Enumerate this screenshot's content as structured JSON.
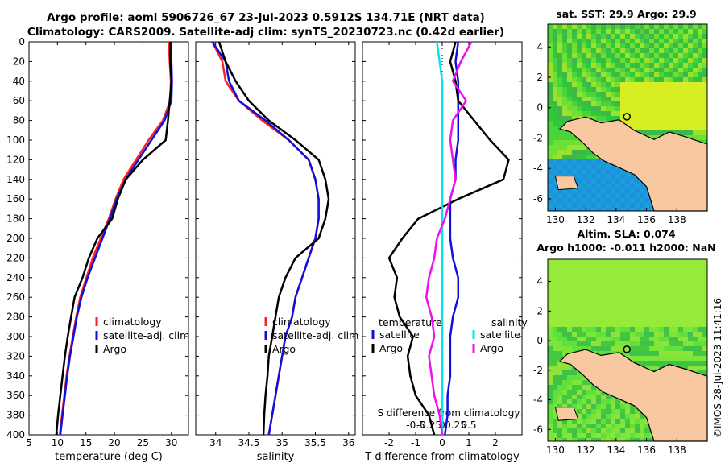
{
  "header": {
    "title_line1": "Argo profile: aoml 5906726_67 23-Jul-2023 0.5912S 134.71E (NRT data)",
    "title_line2": "Climatology: CARS2009. Satellite-adj clim: synTS_20230723.nc (0.42d earlier)"
  },
  "map_sst": {
    "title": "sat. SST: 29.9 Argo: 29.9"
  },
  "map_sla": {
    "title_line1": "Altim. SLA: 0.074",
    "title_line2": "Argo h1000: -0.011 h2000: NaN"
  },
  "copyright": "©IMOS 28-Jul-2023 11:41:16",
  "colors": {
    "climatology": "#ff2020",
    "satellite": "#1010dd",
    "argo": "#000000",
    "sat_salinity": "#00e5ee",
    "argo_salinity": "#ee10ee",
    "land": "#f8c8a0"
  },
  "chart_data": [
    {
      "type": "line",
      "name": "temperature",
      "xlabel": "temperature (deg C)",
      "xlim": [
        5,
        33
      ],
      "ylim": [
        400,
        0
      ],
      "xticks": [
        5,
        10,
        15,
        20,
        25,
        30
      ],
      "yticks": [
        0,
        20,
        40,
        60,
        80,
        100,
        120,
        140,
        160,
        180,
        200,
        220,
        240,
        260,
        280,
        300,
        320,
        340,
        360,
        380,
        400
      ],
      "legend": [
        "climatology",
        "satellite-adj. clim",
        "Argo"
      ],
      "series": [
        {
          "name": "climatology",
          "depth": [
            0,
            20,
            40,
            60,
            80,
            100,
            120,
            140,
            160,
            180,
            200,
            220,
            240,
            260,
            280,
            300,
            320,
            340,
            360,
            380,
            400
          ],
          "values": [
            29.5,
            29.7,
            29.9,
            29.8,
            28.5,
            26.0,
            23.8,
            21.6,
            20.2,
            19.0,
            17.6,
            16.2,
            15.1,
            14.0,
            13.3,
            12.7,
            12.1,
            11.6,
            11.2,
            10.8,
            10.4
          ]
        },
        {
          "name": "satellite-adj. clim",
          "depth": [
            0,
            20,
            40,
            60,
            80,
            100,
            120,
            140,
            160,
            180,
            200,
            220,
            240,
            260,
            280,
            300,
            320,
            340,
            360,
            380,
            400
          ],
          "values": [
            29.9,
            30.0,
            30.1,
            30.0,
            28.8,
            26.5,
            24.2,
            22.0,
            20.4,
            19.2,
            17.9,
            16.6,
            15.3,
            14.2,
            13.4,
            12.8,
            12.2,
            11.7,
            11.3,
            10.9,
            10.5
          ]
        },
        {
          "name": "Argo",
          "depth": [
            0,
            20,
            40,
            60,
            80,
            100,
            120,
            140,
            160,
            180,
            200,
            220,
            240,
            260,
            280,
            300,
            320,
            340,
            360,
            380,
            400
          ],
          "values": [
            29.8,
            29.8,
            30.0,
            29.7,
            29.4,
            29.0,
            25.0,
            22.0,
            20.6,
            19.6,
            17.0,
            15.5,
            14.4,
            13.0,
            12.4,
            11.8,
            11.3,
            10.9,
            10.5,
            10.1,
            9.8
          ]
        }
      ]
    },
    {
      "type": "line",
      "name": "salinity",
      "xlabel": "salinity",
      "xlim": [
        33.7,
        36.1
      ],
      "ylim": [
        400,
        0
      ],
      "xticks": [
        34,
        34.5,
        35,
        35.5,
        36
      ],
      "legend": [
        "climatology",
        "satellite-adj. clim",
        "Argo"
      ],
      "series": [
        {
          "name": "climatology",
          "depth": [
            0,
            20,
            40,
            60,
            80,
            100,
            120,
            140,
            160,
            180,
            200,
            220,
            240,
            260,
            280,
            300,
            320,
            340,
            360,
            380,
            400
          ],
          "values": [
            33.95,
            34.1,
            34.15,
            34.35,
            34.7,
            35.1,
            35.4,
            35.5,
            35.55,
            35.55,
            35.5,
            35.4,
            35.3,
            35.2,
            35.15,
            35.05,
            35.0,
            34.95,
            34.9,
            34.85,
            34.8
          ]
        },
        {
          "name": "satellite-adj. clim",
          "depth": [
            0,
            20,
            40,
            60,
            80,
            100,
            120,
            140,
            160,
            180,
            200,
            220,
            240,
            260,
            280,
            300,
            320,
            340,
            360,
            380,
            400
          ],
          "values": [
            33.95,
            34.15,
            34.2,
            34.35,
            34.75,
            35.1,
            35.4,
            35.5,
            35.55,
            35.55,
            35.5,
            35.4,
            35.3,
            35.2,
            35.15,
            35.05,
            35.0,
            34.95,
            34.9,
            34.85,
            34.8
          ]
        },
        {
          "name": "Argo",
          "depth": [
            0,
            20,
            40,
            60,
            80,
            100,
            120,
            140,
            160,
            180,
            200,
            220,
            240,
            260,
            280,
            300,
            320,
            340,
            360,
            380,
            400
          ],
          "values": [
            34.05,
            34.15,
            34.3,
            34.5,
            34.8,
            35.2,
            35.55,
            35.65,
            35.7,
            35.65,
            35.55,
            35.2,
            35.05,
            34.95,
            34.9,
            34.85,
            34.8,
            34.78,
            34.75,
            34.73,
            34.72
          ]
        }
      ]
    },
    {
      "type": "line",
      "name": "differences",
      "xlabel": "T difference from climatology",
      "xlim": [
        -3,
        3
      ],
      "ylim": [
        400,
        0
      ],
      "xticks": [
        -2,
        -1,
        0,
        1,
        2
      ],
      "top_label": "S difference from climatology",
      "top_ticks": [
        "-0.5",
        "-0.25",
        "0",
        "0.25",
        "0.5"
      ],
      "legend_headers": [
        "temperature",
        "salinity"
      ],
      "legend": [
        "satellite",
        "Argo",
        "satellite",
        "Argo"
      ],
      "series": [
        {
          "name": "temperature satellite",
          "depth": [
            0,
            20,
            40,
            60,
            80,
            100,
            120,
            140,
            160,
            180,
            200,
            220,
            240,
            260,
            280,
            300,
            320,
            340,
            360,
            380,
            400
          ],
          "values": [
            0.6,
            0.5,
            0.6,
            0.6,
            0.6,
            0.6,
            0.5,
            0.5,
            0.3,
            0.3,
            0.3,
            0.4,
            0.6,
            0.6,
            0.4,
            0.3,
            0.3,
            0.3,
            0.2,
            0.2,
            0.1
          ]
        },
        {
          "name": "temperature Argo",
          "depth": [
            0,
            20,
            40,
            60,
            80,
            100,
            120,
            140,
            160,
            180,
            200,
            220,
            240,
            260,
            280,
            300,
            320,
            340,
            360,
            380,
            400
          ],
          "values": [
            0.5,
            0.3,
            0.5,
            0.6,
            1.2,
            1.8,
            2.5,
            2.3,
            0.6,
            -0.9,
            -1.5,
            -2.0,
            -1.7,
            -1.8,
            -1.6,
            -1.1,
            -1.3,
            -1.2,
            -1.0,
            -0.5,
            -0.3
          ]
        },
        {
          "name": "salinity satellite",
          "depth": [
            0,
            20,
            40,
            60,
            80,
            100,
            120,
            140,
            160,
            180,
            200,
            220,
            240,
            260,
            280,
            300,
            320,
            340,
            360,
            380,
            400
          ],
          "values": [
            -0.1,
            -0.05,
            0,
            0,
            0,
            0,
            0,
            0,
            0,
            0,
            0,
            0,
            0,
            0,
            0,
            0,
            0,
            0,
            0,
            0,
            0
          ]
        },
        {
          "name": "salinity Argo",
          "depth": [
            0,
            20,
            40,
            60,
            80,
            100,
            120,
            140,
            160,
            180,
            200,
            220,
            240,
            260,
            280,
            300,
            320,
            340,
            360,
            380,
            400
          ],
          "values": [
            0.55,
            0.35,
            0.2,
            0.45,
            0.2,
            0.15,
            0.2,
            0.25,
            0.15,
            0.05,
            -0.1,
            -0.15,
            -0.25,
            -0.3,
            -0.2,
            -0.15,
            -0.25,
            -0.2,
            -0.15,
            -0.05,
            0.0
          ]
        }
      ]
    },
    {
      "type": "heatmap",
      "name": "sst_map",
      "title": "sat. SST: 29.9 Argo: 29.9",
      "xticks": [
        130,
        132,
        134,
        136,
        138
      ],
      "yticks": [
        4,
        2,
        0,
        -2,
        -4,
        -6
      ],
      "xlim": [
        129.5,
        140
      ],
      "ylim": [
        -6.8,
        5.5
      ],
      "argo_position": [
        134.71,
        -0.59
      ]
    },
    {
      "type": "heatmap",
      "name": "sla_map",
      "title": "Altim. SLA: 0.074",
      "xticks": [
        130,
        132,
        134,
        136,
        138
      ],
      "yticks": [
        4,
        2,
        0,
        -2,
        -4,
        -6
      ],
      "xlim": [
        129.5,
        140
      ],
      "ylim": [
        -6.8,
        5.5
      ],
      "argo_position": [
        134.71,
        -0.59
      ]
    }
  ]
}
